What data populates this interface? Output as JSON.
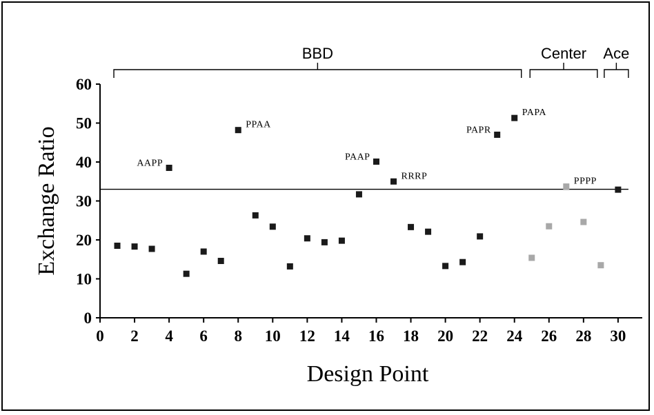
{
  "chart_data": {
    "type": "scatter",
    "xlabel": "Design Point",
    "ylabel": "Exchange Ratio",
    "xlim": [
      0,
      31
    ],
    "ylim": [
      0,
      60
    ],
    "xticks": [
      "0",
      "2",
      "4",
      "6",
      "8",
      "10",
      "12",
      "14",
      "16",
      "18",
      "20",
      "22",
      "24",
      "26",
      "28",
      "30"
    ],
    "yticks": [
      "0",
      "10",
      "20",
      "30",
      "40",
      "50",
      "60"
    ],
    "reference_line_y": 33,
    "groups": [
      {
        "label": "BBD",
        "x_range": [
          0.8,
          24.4
        ]
      },
      {
        "label": "Center",
        "x_range": [
          24.9,
          28.8
        ]
      },
      {
        "label": "Ace",
        "x_range": [
          29.2,
          30.6
        ]
      }
    ],
    "series": [
      {
        "color": "#1a1a1a",
        "points": [
          {
            "x": 1,
            "y": 18.5
          },
          {
            "x": 2,
            "y": 18.3
          },
          {
            "x": 3,
            "y": 17.7
          },
          {
            "x": 4,
            "y": 38.5,
            "label": "AAPP"
          },
          {
            "x": 5,
            "y": 11.3
          },
          {
            "x": 6,
            "y": 17.0
          },
          {
            "x": 7,
            "y": 14.6
          },
          {
            "x": 8,
            "y": 48.2,
            "label": "PPAA"
          },
          {
            "x": 9,
            "y": 26.3
          },
          {
            "x": 10,
            "y": 23.4
          },
          {
            "x": 11,
            "y": 13.2
          },
          {
            "x": 12,
            "y": 20.4
          },
          {
            "x": 13,
            "y": 19.4
          },
          {
            "x": 14,
            "y": 19.8
          },
          {
            "x": 15,
            "y": 31.7
          },
          {
            "x": 16,
            "y": 40.1,
            "label": "PAAP"
          },
          {
            "x": 17,
            "y": 35.0,
            "label": "RRRP"
          },
          {
            "x": 18,
            "y": 23.3
          },
          {
            "x": 19,
            "y": 22.1
          },
          {
            "x": 20,
            "y": 13.3
          },
          {
            "x": 21,
            "y": 14.3
          },
          {
            "x": 22,
            "y": 20.9
          },
          {
            "x": 23,
            "y": 47.0,
            "label": "PAPR"
          },
          {
            "x": 24,
            "y": 51.3,
            "label": "PAPA"
          },
          {
            "x": 30,
            "y": 32.9
          }
        ]
      },
      {
        "color": "#a8a8a8",
        "points": [
          {
            "x": 25,
            "y": 15.4
          },
          {
            "x": 26,
            "y": 23.5
          },
          {
            "x": 27,
            "y": 33.7,
            "label": "PPPP"
          },
          {
            "x": 28,
            "y": 24.6
          },
          {
            "x": 29,
            "y": 13.5
          }
        ]
      }
    ]
  }
}
